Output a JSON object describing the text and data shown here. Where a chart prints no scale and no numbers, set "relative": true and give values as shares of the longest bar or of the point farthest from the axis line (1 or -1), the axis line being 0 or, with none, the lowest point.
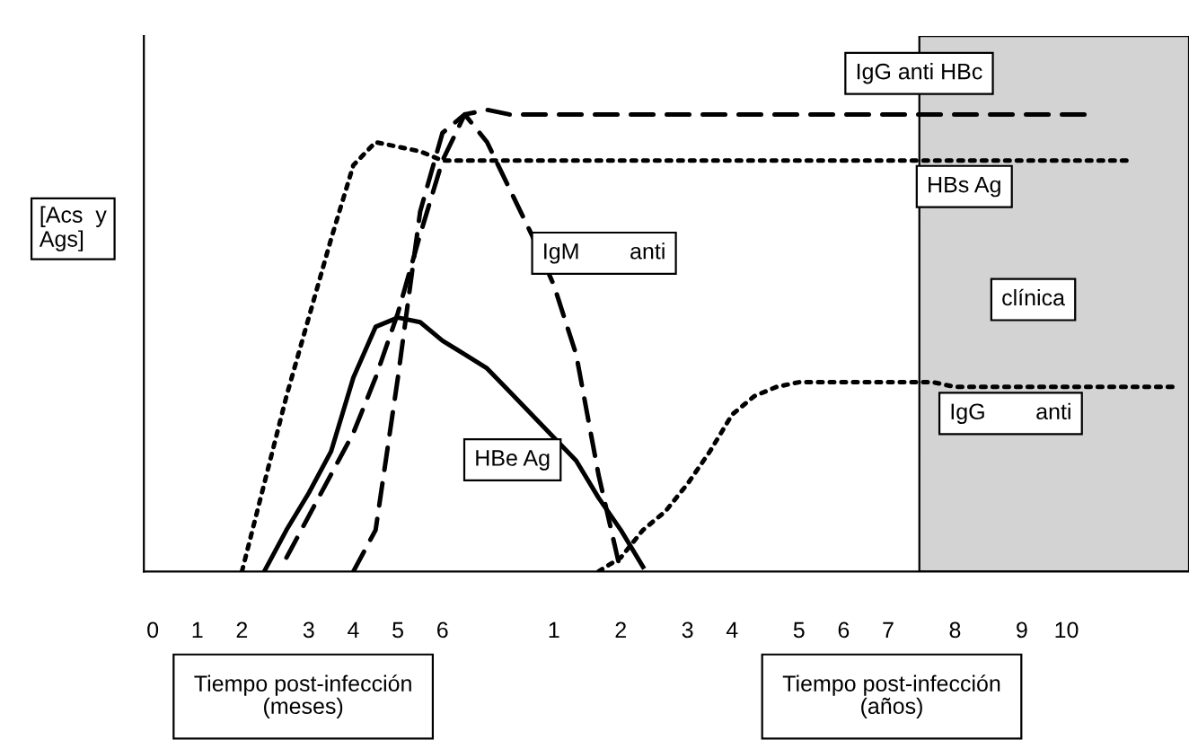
{
  "chart_data": {
    "type": "line",
    "relative": true,
    "ylabel": "[Acs  y\nAgs]",
    "categories": [
      "0",
      null,
      "1",
      null,
      "2",
      null,
      null,
      "3",
      null,
      "4",
      null,
      "5",
      null,
      "6",
      null,
      null,
      null,
      null,
      "1",
      null,
      null,
      "2",
      null,
      null,
      "3",
      null,
      "4",
      null,
      null,
      "5",
      null,
      "6",
      null,
      "7",
      null,
      null,
      "8",
      null,
      null,
      "9",
      null,
      "10",
      null,
      null,
      null,
      null,
      null
    ],
    "tick_labels": "x",
    "series": [
      {
        "color": "#000000",
        "line_style": "dotted",
        "values": [
          null,
          null,
          null,
          null,
          0,
          0.19,
          0.38,
          0.55,
          0.72,
          0.88,
          0.93,
          0.92,
          0.91,
          0.89,
          0.89,
          0.89,
          0.89,
          0.89,
          0.89,
          0.89,
          0.89,
          0.89,
          0.89,
          0.89,
          0.89,
          0.89,
          0.89,
          0.89,
          0.89,
          0.89,
          0.89,
          0.89,
          0.89,
          0.89,
          0.89,
          0.89,
          0.89,
          0.89,
          0.89,
          0.89,
          0.89,
          0.89,
          0.89,
          0.89,
          0.89,
          null,
          null
        ]
      },
      {
        "color": "#000000",
        "line_style": "dashed",
        "values": [
          null,
          null,
          null,
          null,
          null,
          null,
          0.03,
          0.12,
          0.21,
          0.3,
          0.42,
          0.56,
          0.73,
          0.89,
          0.99,
          1,
          0.99,
          0.99,
          0.99,
          0.99,
          0.99,
          0.99,
          0.99,
          0.99,
          0.99,
          0.99,
          0.99,
          0.99,
          0.99,
          0.99,
          0.99,
          0.99,
          0.99,
          0.99,
          0.99,
          0.99,
          0.99,
          0.99,
          0.99,
          0.99,
          0.99,
          0.99,
          0.99,
          null,
          null,
          null,
          null
        ]
      },
      {
        "color": "#000000",
        "line_style": "dashed",
        "values": [
          null,
          null,
          null,
          null,
          null,
          null,
          null,
          null,
          null,
          0,
          0.09,
          0.42,
          0.78,
          0.95,
          0.99,
          0.93,
          0.83,
          0.73,
          0.62,
          0.47,
          0.21,
          0,
          null,
          null,
          null,
          null,
          null,
          null,
          null,
          null,
          null,
          null,
          null,
          null,
          null,
          null,
          null,
          null,
          null,
          null,
          null,
          null,
          null,
          null,
          null,
          null,
          null
        ]
      },
      {
        "color": "#000000",
        "line_style": "solid",
        "values": [
          null,
          null,
          null,
          null,
          null,
          0,
          0.09,
          0.17,
          0.26,
          0.42,
          0.53,
          0.55,
          0.54,
          0.5,
          0.47,
          0.44,
          0.39,
          0.34,
          0.29,
          0.24,
          0.16,
          0.09,
          0.01,
          null,
          null,
          null,
          null,
          null,
          null,
          null,
          null,
          null,
          null,
          null,
          null,
          null,
          null,
          null,
          null,
          null,
          null,
          null,
          null,
          null,
          null,
          null,
          null
        ]
      },
      {
        "color": "#000000",
        "line_style": "dotted",
        "values": [
          null,
          null,
          null,
          null,
          null,
          null,
          null,
          null,
          null,
          null,
          null,
          null,
          null,
          null,
          null,
          null,
          null,
          null,
          null,
          null,
          0,
          0.03,
          0.09,
          0.13,
          0.19,
          0.26,
          0.34,
          0.38,
          0.4,
          0.41,
          0.41,
          0.41,
          0.41,
          0.41,
          0.41,
          0.41,
          0.4,
          0.4,
          0.4,
          0.4,
          0.4,
          0.4,
          0.4,
          0.4,
          0.4,
          0.4,
          0.4
        ]
      }
    ],
    "annotations": [
      "IgG anti HBc",
      "HBs Ag",
      "IgM        anti",
      "clínica",
      "IgG        anti",
      "HBe Ag",
      "Tiempo post-infección\n(meses)",
      "Tiempo post-infección\n(años)"
    ]
  }
}
